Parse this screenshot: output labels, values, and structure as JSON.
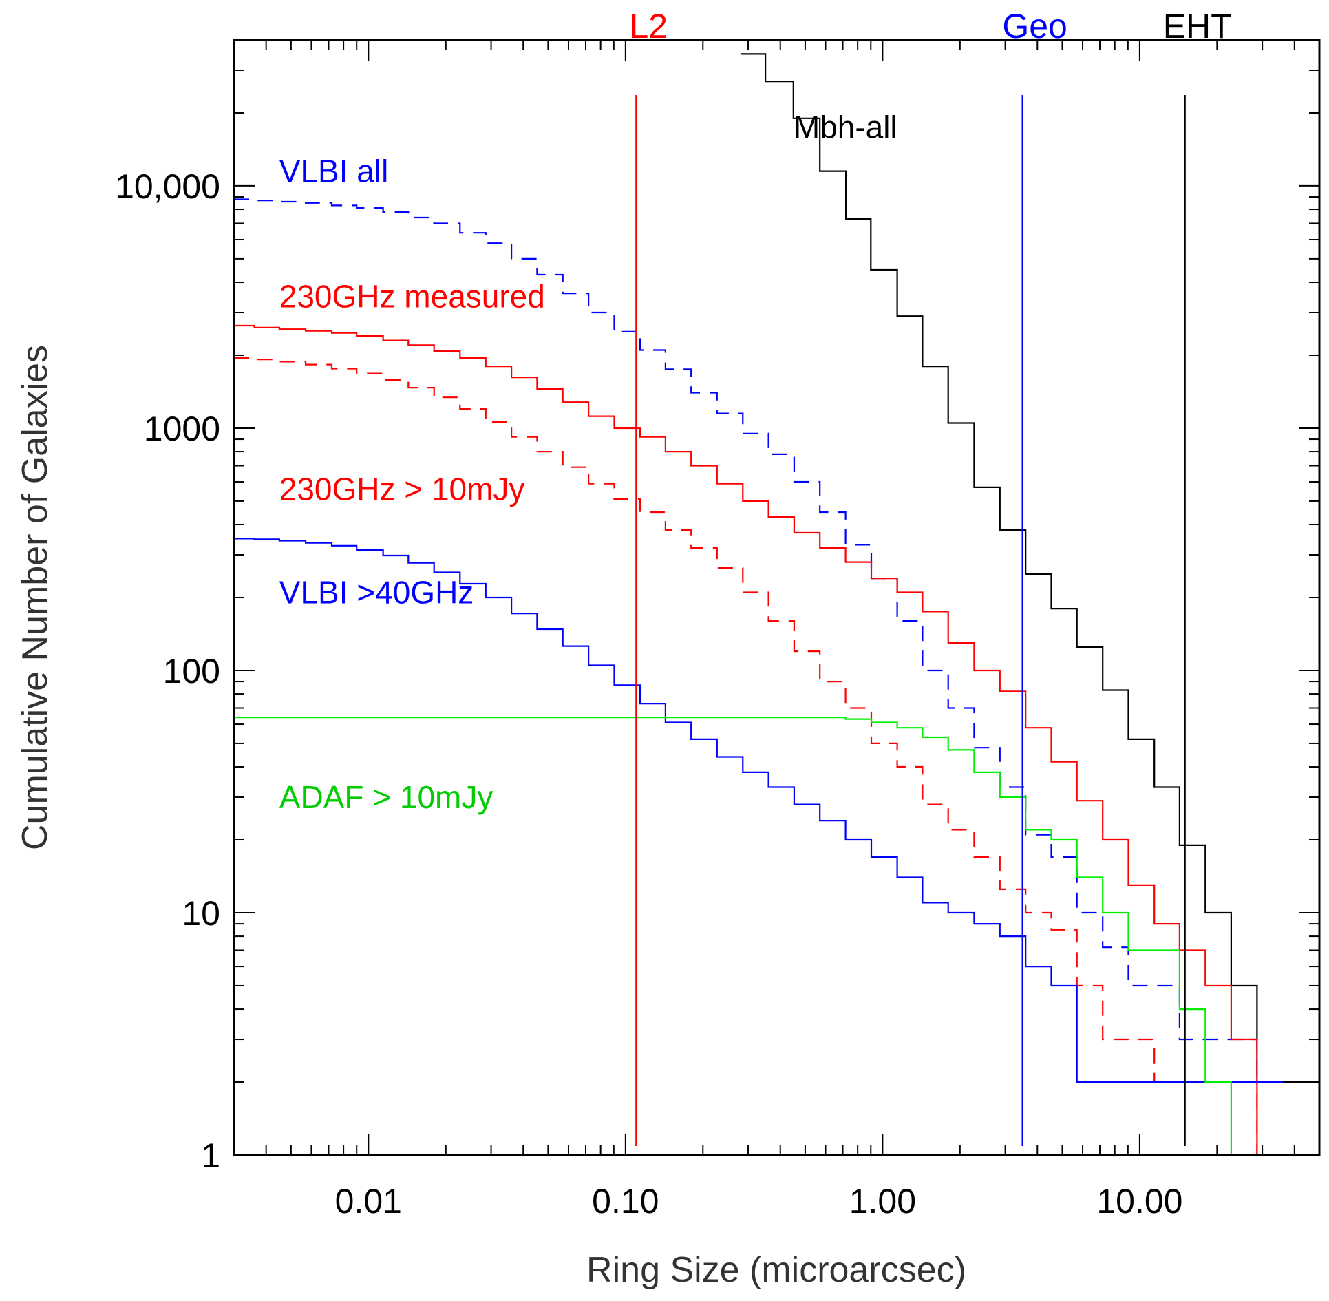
{
  "chart_data": {
    "type": "line",
    "step": true,
    "xlabel": "Ring Size (microarcsec)",
    "ylabel": "Cumulative Number of Galaxies",
    "xscale": "log",
    "yscale": "log",
    "xlim": [
      0.003,
      50
    ],
    "ylim": [
      1,
      40000
    ],
    "xticks": [
      {
        "value": 0.01,
        "label": "0.01"
      },
      {
        "value": 0.1,
        "label": "0.10"
      },
      {
        "value": 1,
        "label": "1.00"
      },
      {
        "value": 10,
        "label": "10.00"
      }
    ],
    "yticks": [
      {
        "value": 1,
        "label": "1"
      },
      {
        "value": 10,
        "label": "10"
      },
      {
        "value": 100,
        "label": "100"
      },
      {
        "value": 1000,
        "label": "1000"
      },
      {
        "value": 10000,
        "label": "10,000"
      }
    ],
    "grid": false,
    "legend": "none",
    "vlines": [
      {
        "label": "L2",
        "x": 0.11,
        "color": "#ff0000"
      },
      {
        "label": "Geo",
        "x": 3.5,
        "color": "#0000ff"
      },
      {
        "label": "EHT",
        "x": 15,
        "color": "#000000"
      }
    ],
    "annotations": [
      {
        "text": "Mbh-all",
        "x": 0.45,
        "y": 17500,
        "color": "#000000"
      },
      {
        "text": "VLBI all",
        "x": 0.0045,
        "y": 11500,
        "color": "#0000ff"
      },
      {
        "text": "230GHz measured",
        "x": 0.0045,
        "y": 3500,
        "color": "#ff0000"
      },
      {
        "text": "230GHz > 10mJy",
        "x": 0.0045,
        "y": 560,
        "color": "#ff0000"
      },
      {
        "text": "VLBI >40GHz",
        "x": 0.0045,
        "y": 210,
        "color": "#0000ff"
      },
      {
        "text": "ADAF > 10mJy",
        "x": 0.0045,
        "y": 30,
        "color": "#00cc00"
      }
    ],
    "series": [
      {
        "color": "#000000",
        "dash": false,
        "x": [
          0.28,
          0.35,
          0.45,
          0.57,
          0.72,
          0.9,
          1.14,
          1.43,
          1.8,
          2.27,
          2.86,
          3.6,
          4.53,
          5.7,
          7.18,
          9.04,
          11.4,
          14.3,
          18.0,
          22.7,
          28.6,
          36.0,
          45.3
        ],
        "y": [
          35000,
          27000,
          19000,
          11500,
          7300,
          4500,
          2900,
          1800,
          1050,
          570,
          380,
          250,
          180,
          125,
          83,
          52,
          33,
          19,
          10,
          5,
          2,
          2,
          2
        ]
      },
      {
        "color": "#0000ff",
        "dash": true,
        "x": [
          0.003,
          0.0036,
          0.0045,
          0.0057,
          0.0072,
          0.009,
          0.0114,
          0.0143,
          0.018,
          0.0227,
          0.0286,
          0.036,
          0.0453,
          0.057,
          0.0718,
          0.0904,
          0.114,
          0.143,
          0.18,
          0.227,
          0.286,
          0.36,
          0.453,
          0.57,
          0.718,
          0.904,
          1.14,
          1.43,
          1.8,
          2.27,
          2.86,
          3.6,
          4.53,
          5.7,
          7.18,
          9.04,
          11.4,
          14.3,
          18.0,
          22.7,
          28.6
        ],
        "y": [
          8800,
          8700,
          8600,
          8500,
          8300,
          8100,
          7800,
          7400,
          7000,
          6400,
          5800,
          5000,
          4300,
          3600,
          3000,
          2500,
          2100,
          1750,
          1400,
          1150,
          950,
          780,
          600,
          450,
          330,
          240,
          160,
          100,
          70,
          48,
          33,
          21,
          17,
          10,
          7.2,
          5,
          5,
          3,
          3,
          3,
          2
        ]
      },
      {
        "color": "#ff0000",
        "dash": false,
        "x": [
          0.003,
          0.0036,
          0.0045,
          0.0057,
          0.0072,
          0.009,
          0.0114,
          0.0143,
          0.018,
          0.0227,
          0.0286,
          0.036,
          0.0453,
          0.057,
          0.0718,
          0.0904,
          0.114,
          0.143,
          0.18,
          0.227,
          0.286,
          0.36,
          0.453,
          0.57,
          0.718,
          0.904,
          1.14,
          1.43,
          1.8,
          2.27,
          2.86,
          3.6,
          4.53,
          5.7,
          7.18,
          9.04,
          11.4,
          14.3,
          18.0,
          22.7,
          28.6
        ],
        "y": [
          2650,
          2600,
          2560,
          2520,
          2470,
          2400,
          2300,
          2200,
          2080,
          1950,
          1800,
          1620,
          1450,
          1280,
          1120,
          1000,
          920,
          800,
          700,
          590,
          500,
          430,
          370,
          320,
          280,
          240,
          210,
          175,
          130,
          100,
          82,
          58,
          42,
          29,
          20,
          13,
          9,
          7,
          5,
          3,
          1
        ]
      },
      {
        "color": "#ff0000",
        "dash": true,
        "x": [
          0.003,
          0.0036,
          0.0045,
          0.0057,
          0.0072,
          0.009,
          0.0114,
          0.0143,
          0.018,
          0.0227,
          0.0286,
          0.036,
          0.0453,
          0.057,
          0.0718,
          0.0904,
          0.114,
          0.143,
          0.18,
          0.227,
          0.286,
          0.36,
          0.453,
          0.57,
          0.718,
          0.904,
          1.14,
          1.43,
          1.8,
          2.27,
          2.86,
          3.6,
          4.53,
          5.7,
          7.18,
          9.04,
          11.4,
          14.3,
          18.0,
          22.7,
          28.6
        ],
        "y": [
          1950,
          1920,
          1880,
          1830,
          1760,
          1680,
          1580,
          1470,
          1340,
          1200,
          1060,
          920,
          800,
          690,
          590,
          510,
          450,
          380,
          320,
          265,
          210,
          160,
          120,
          90,
          70,
          50,
          40,
          28,
          22,
          17,
          12.5,
          10,
          8.5,
          5,
          3,
          3,
          2,
          2,
          2,
          2,
          1
        ]
      },
      {
        "color": "#0000ff",
        "dash": false,
        "x": [
          0.003,
          0.0036,
          0.0045,
          0.0057,
          0.0072,
          0.009,
          0.0114,
          0.0143,
          0.018,
          0.0227,
          0.0286,
          0.036,
          0.0453,
          0.057,
          0.0718,
          0.0904,
          0.114,
          0.143,
          0.18,
          0.227,
          0.286,
          0.36,
          0.453,
          0.57,
          0.718,
          0.904,
          1.14,
          1.43,
          1.8,
          2.27,
          2.86,
          3.6,
          4.53,
          5.7,
          7.18,
          9.04,
          11.4,
          14.3,
          18.0,
          22.7,
          28.6
        ],
        "y": [
          350,
          348,
          343,
          336,
          327,
          314,
          298,
          278,
          254,
          228,
          200,
          172,
          148,
          126,
          105,
          87,
          73,
          61,
          52,
          44,
          38,
          33,
          28,
          24,
          20,
          17,
          14,
          11,
          10,
          9,
          8,
          6,
          5,
          2,
          2,
          2,
          2,
          2,
          2,
          2,
          2
        ]
      },
      {
        "color": "#00ee00",
        "dash": false,
        "x": [
          0.003,
          0.0036,
          0.0045,
          0.0057,
          0.0072,
          0.009,
          0.0114,
          0.0143,
          0.018,
          0.0227,
          0.0286,
          0.036,
          0.0453,
          0.057,
          0.0718,
          0.0904,
          0.114,
          0.143,
          0.18,
          0.227,
          0.286,
          0.36,
          0.453,
          0.57,
          0.718,
          0.904,
          1.14,
          1.43,
          1.8,
          2.27,
          2.86,
          3.6,
          4.53,
          5.7,
          7.18,
          9.04,
          11.4,
          14.3,
          18.0,
          22.7,
          28.6,
          36.0,
          45.3
        ],
        "y": [
          64,
          64,
          64,
          64,
          64,
          64,
          64,
          64,
          64,
          64,
          64,
          64,
          64,
          64,
          64,
          64,
          64,
          64,
          64,
          64,
          64,
          64,
          64,
          64,
          63,
          61,
          58,
          53,
          47,
          38,
          30,
          22,
          20,
          14,
          10,
          7,
          7,
          4,
          2,
          1,
          1,
          1,
          1
        ]
      }
    ]
  }
}
